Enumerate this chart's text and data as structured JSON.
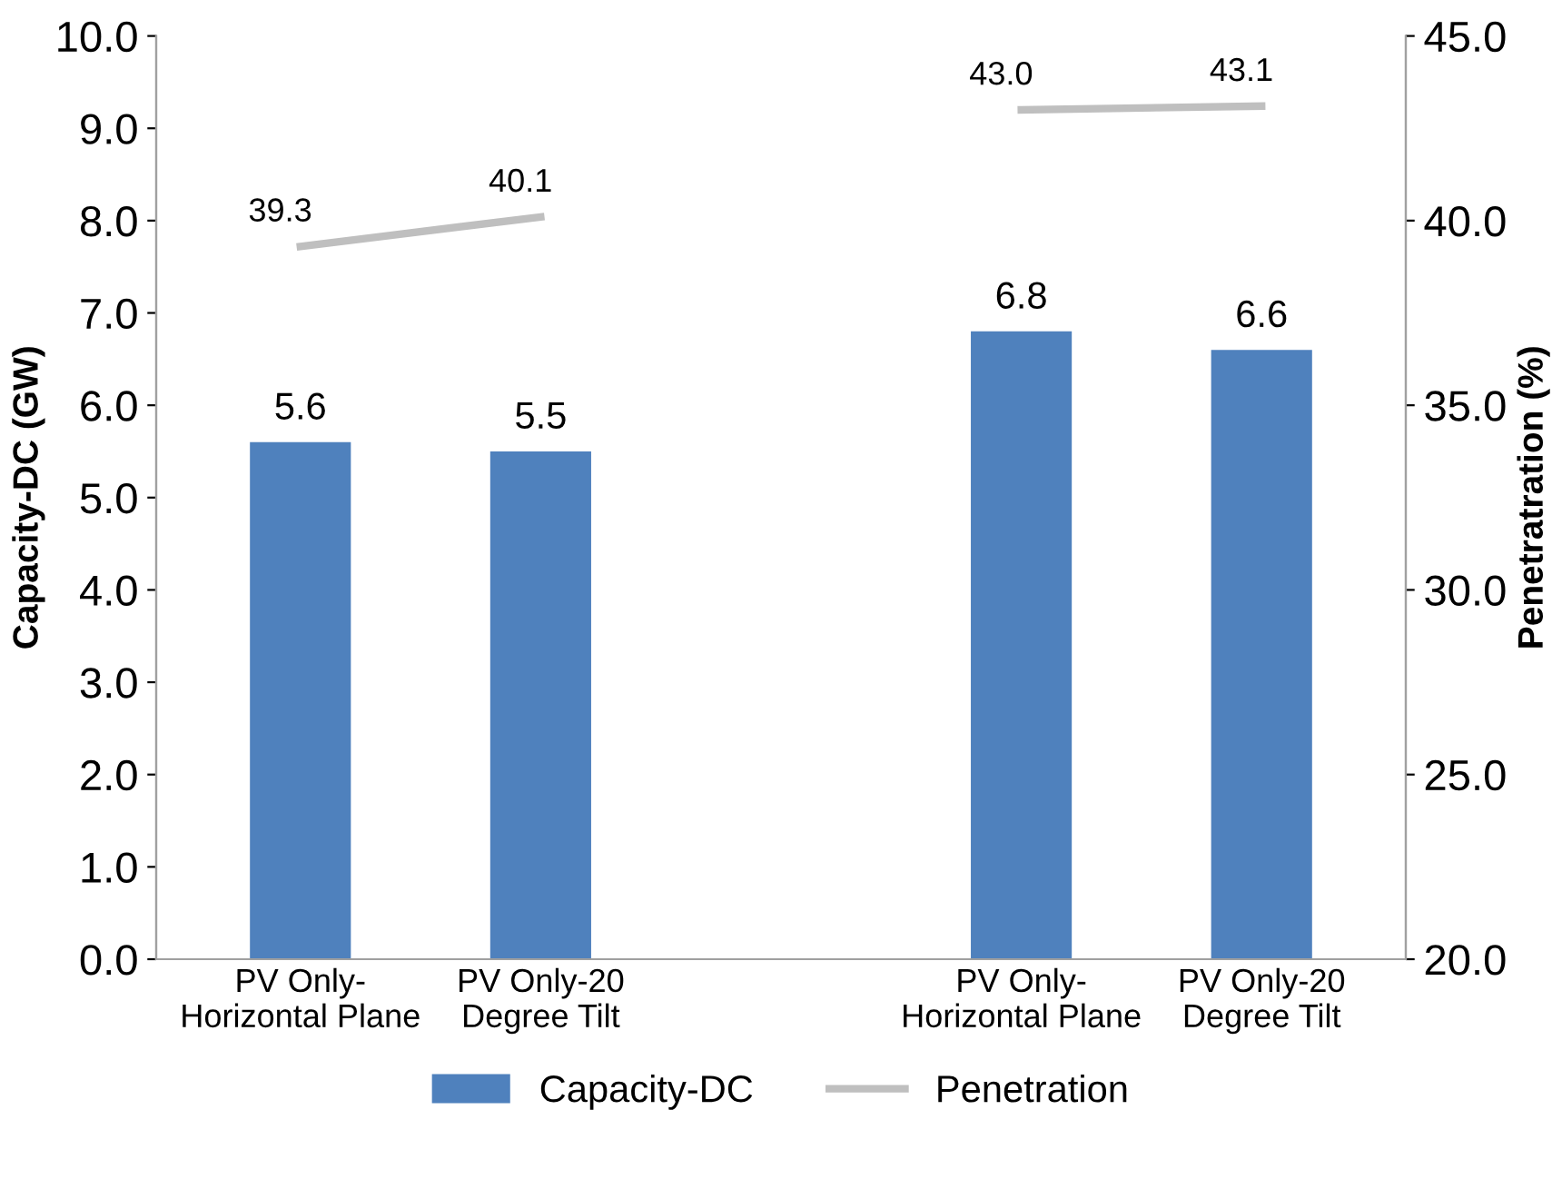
{
  "chart_data": {
    "type": "bar",
    "categories": [
      "PV Only-\nHorizontal Plane",
      "PV Only-20\nDegree Tilt",
      null,
      "PV Only-\nHorizontal Plane",
      "PV Only-20\nDegree Tilt"
    ],
    "series": [
      {
        "name": "Capacity-DC",
        "color": "#4f81bd",
        "values": [
          5.6,
          5.5,
          null,
          6.8,
          6.6
        ]
      },
      {
        "name": "Penetration",
        "type": "line",
        "axis": "y2",
        "color": "#bfbfbf",
        "values": [
          39.3,
          40.1,
          null,
          43.0,
          43.1
        ],
        "value_labels": [
          "39.3",
          "40.1",
          null,
          "43.0",
          "43.1"
        ]
      }
    ],
    "ylabel": "Capacity-DC (GW)",
    "y2label": "Penetratration (%)",
    "ylim": [
      0,
      10
    ],
    "yticks": [
      {
        "value": 0,
        "label": "0.0"
      },
      {
        "value": 1,
        "label": "1.0"
      },
      {
        "value": 2,
        "label": "2.0"
      },
      {
        "value": 3,
        "label": "3.0"
      },
      {
        "value": 4,
        "label": "4.0"
      },
      {
        "value": 5,
        "label": "5.0"
      },
      {
        "value": 6,
        "label": "6.0"
      },
      {
        "value": 7,
        "label": "7.0"
      },
      {
        "value": 8,
        "label": "8.0"
      },
      {
        "value": 9,
        "label": "9.0"
      },
      {
        "value": 10,
        "label": "10.0"
      }
    ],
    "y2lim": [
      20,
      45
    ],
    "y2ticks": [
      {
        "value": 20,
        "label": "20.0"
      },
      {
        "value": 25,
        "label": "25.0"
      },
      {
        "value": 30,
        "label": "30.0"
      },
      {
        "value": 35,
        "label": "35.0"
      },
      {
        "value": 40,
        "label": "40.0"
      },
      {
        "value": 45,
        "label": "45.0"
      }
    ],
    "data_labels": true,
    "legend": "bottom",
    "grid": false
  }
}
